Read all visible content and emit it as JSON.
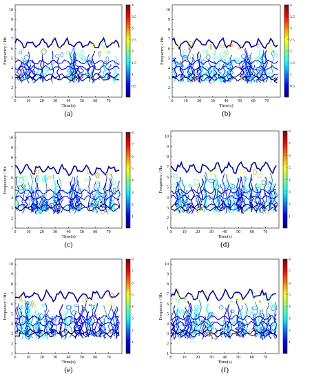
{
  "chart_data": [
    {
      "type": "heatmap",
      "panel": "(a)",
      "xlabel": "Time(s)",
      "ylabel": "Frequency / Hz",
      "xlim": [
        0,
        80
      ],
      "ylim": [
        1,
        10.5
      ],
      "xticks": [
        "0",
        "10",
        "20",
        "30",
        "40",
        "50",
        "60",
        "70"
      ],
      "yticks": [
        "1",
        "2",
        "3",
        "4",
        "5",
        "6",
        "7",
        "8",
        "9",
        "10"
      ],
      "colorbar": {
        "min": 0,
        "max": 4,
        "ticks": [
          "0.5",
          "1",
          "1.5",
          "2",
          "2.5",
          "3",
          "3.5",
          "4"
        ]
      },
      "band_top_hz": 6.9
    },
    {
      "type": "heatmap",
      "panel": "(b)",
      "xlabel": "Time(s)",
      "ylabel": "Frequency / Hz",
      "xlim": [
        0,
        80
      ],
      "ylim": [
        1,
        10.5
      ],
      "xticks": [
        "0",
        "10",
        "20",
        "30",
        "40",
        "50",
        "60",
        "70"
      ],
      "yticks": [
        "1",
        "2",
        "3",
        "4",
        "5",
        "6",
        "7",
        "8",
        "9",
        "10"
      ],
      "colorbar": {
        "min": 0,
        "max": 4,
        "ticks": [
          "0.5",
          "1",
          "1.5",
          "2",
          "2.5",
          "3",
          "3.5",
          "4"
        ]
      },
      "band_top_hz": 6.9
    },
    {
      "type": "heatmap",
      "panel": "(c)",
      "xlabel": "Time(s)",
      "ylabel": "Frequency / Hz",
      "xlim": [
        0,
        80
      ],
      "ylim": [
        1,
        10.5
      ],
      "xticks": [
        "0",
        "10",
        "20",
        "30",
        "40",
        "50",
        "60",
        "70"
      ],
      "yticks": [
        "1",
        "2",
        "3",
        "4",
        "5",
        "6",
        "7",
        "8",
        "9",
        "10"
      ],
      "colorbar": {
        "min": 0,
        "max": 8,
        "ticks": [
          "1",
          "2",
          "3",
          "4",
          "5",
          "6",
          "7",
          "8"
        ]
      },
      "band_top_hz": 7.2
    },
    {
      "type": "heatmap",
      "panel": "(d)",
      "xlabel": "Time(s)",
      "ylabel": "Frequency / Hz",
      "xlim": [
        0,
        80
      ],
      "ylim": [
        1,
        10.5
      ],
      "xticks": [
        "0",
        "10",
        "20",
        "30",
        "40",
        "50",
        "60",
        "70"
      ],
      "yticks": [
        "1",
        "2",
        "3",
        "4",
        "5",
        "6",
        "7",
        "8",
        "9",
        "10"
      ],
      "colorbar": {
        "min": 0,
        "max": 8,
        "ticks": [
          "1",
          "2",
          "3",
          "4",
          "5",
          "6",
          "7",
          "8"
        ]
      },
      "band_top_hz": 7.3
    },
    {
      "type": "heatmap",
      "panel": "(e)",
      "xlabel": "Time(s)",
      "ylabel": "Frequency / Hz",
      "xlim": [
        0,
        80
      ],
      "ylim": [
        1,
        10.5
      ],
      "xticks": [
        "0",
        "10",
        "20",
        "30",
        "40",
        "50",
        "60",
        "70"
      ],
      "yticks": [
        "1",
        "2",
        "3",
        "4",
        "5",
        "6",
        "7",
        "8",
        "9",
        "10"
      ],
      "colorbar": {
        "min": 0,
        "max": 8,
        "ticks": [
          "1",
          "2",
          "3",
          "4",
          "5",
          "6",
          "7",
          "8"
        ]
      },
      "band_top_hz": 7.2
    },
    {
      "type": "heatmap",
      "panel": "(f)",
      "xlabel": "Time(s)",
      "ylabel": "Frequency / Hz",
      "xlim": [
        0,
        80
      ],
      "ylim": [
        1,
        10.5
      ],
      "xticks": [
        "0",
        "10",
        "20",
        "30",
        "40",
        "50",
        "60",
        "70"
      ],
      "yticks": [
        "1",
        "2",
        "3",
        "4",
        "5",
        "6",
        "7",
        "8",
        "9",
        "10"
      ],
      "colorbar": {
        "min": 0,
        "max": 8,
        "ticks": [
          "1",
          "2",
          "3",
          "4",
          "5",
          "6",
          "7",
          "8"
        ]
      },
      "band_top_hz": 7.3
    }
  ],
  "colormap": [
    "#00007f",
    "#0000ff",
    "#007fff",
    "#00ffff",
    "#7fff7f",
    "#ffff00",
    "#ff7f00",
    "#ff0000",
    "#7f0000"
  ]
}
